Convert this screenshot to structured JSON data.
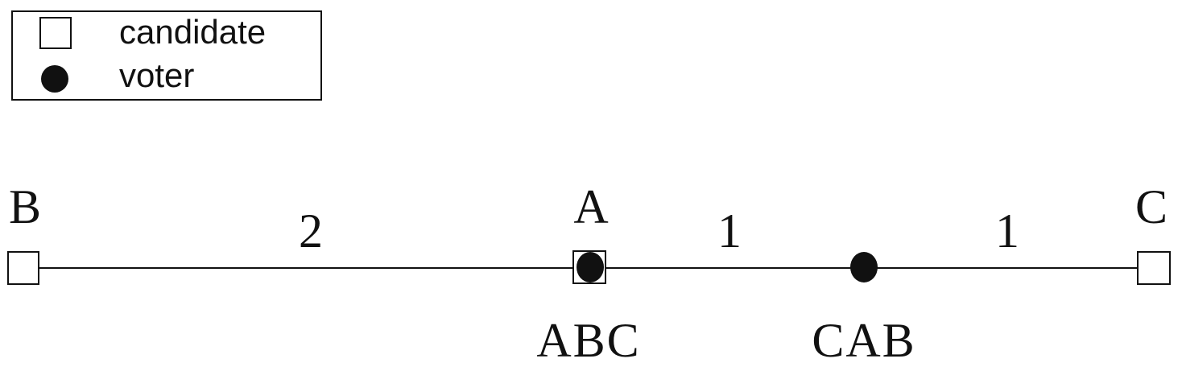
{
  "legend": {
    "items": [
      {
        "label": "candidate",
        "icon": "square-outline-icon"
      },
      {
        "label": "voter",
        "icon": "filled-circle-icon"
      }
    ]
  },
  "candidates": [
    {
      "label": "B"
    },
    {
      "label": "A"
    },
    {
      "label": "C"
    }
  ],
  "segments": [
    {
      "label": "2"
    },
    {
      "label": "1"
    },
    {
      "label": "1"
    }
  ],
  "voters": [
    {
      "label": "ABC"
    },
    {
      "label": "CAB"
    }
  ],
  "colors": {
    "ink": "#111111",
    "background": "#ffffff"
  }
}
